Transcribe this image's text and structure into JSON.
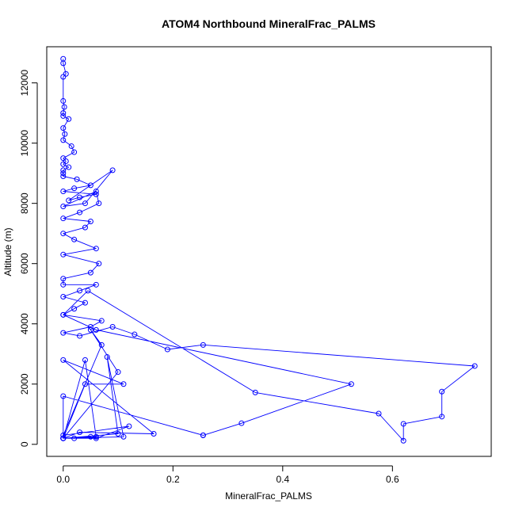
{
  "chart_data": {
    "type": "line",
    "title": "ATOM4 Northbound MineralFrac_PALMS",
    "xlabel": "MineralFrac_PALMS",
    "ylabel": "Altitude (m)",
    "xlim": [
      -0.03,
      0.78
    ],
    "ylim": [
      -400,
      13200
    ],
    "x_ticks": [
      0,
      0.2,
      0.4,
      0.6
    ],
    "x_tick_labels": [
      "0.0",
      "0.2",
      "0.4",
      "0.6"
    ],
    "y_ticks": [
      0,
      2000,
      4000,
      6000,
      8000,
      10000,
      12000
    ],
    "y_tick_labels": [
      "0",
      "2000",
      "4000",
      "6000",
      "8000",
      "10000",
      "12000"
    ],
    "grid": false,
    "marker": "open-circle",
    "color": "#0000ff",
    "series": [
      {
        "x": [
          0.0,
          0.0,
          0.005,
          0.0,
          0.0,
          0.002,
          0.0,
          0.0,
          0.01,
          0.0,
          0.003,
          0.0,
          0.015,
          0.02,
          0.0,
          0.005,
          0.0,
          0.01,
          0.0,
          0.0,
          0.0,
          0.025,
          0.05,
          0.02,
          0.0,
          0.06,
          0.03,
          0.01,
          0.09,
          0.04,
          0.0,
          0.06,
          0.065,
          0.03,
          0.0,
          0.05,
          0.04,
          0.0,
          0.02,
          0.06,
          0.0,
          0.065,
          0.05,
          0.0,
          0.0,
          0.06,
          0.03,
          0.0,
          0.04,
          0.02,
          0.0,
          0.07,
          0.05,
          0.0,
          0.03,
          0.09,
          0.13,
          0.19,
          0.255,
          0.75,
          0.69,
          0.69,
          0.62,
          0.62,
          0.575,
          0.35,
          0.045,
          0.0,
          0.06,
          0.525,
          0.325,
          0.255,
          0.255,
          0.0,
          0.0,
          0.04,
          0.11,
          0.0,
          0.165,
          0.03,
          0.0,
          0.1,
          0.05,
          0.07,
          0.0,
          0.12,
          0.06,
          0.0,
          0.11,
          0.08,
          0.1,
          0.0,
          0.06,
          0.04,
          0.0,
          0.02,
          0.05,
          0.0
        ],
        "y": [
          12800,
          12650,
          12300,
          12200,
          11400,
          11200,
          11000,
          10900,
          10800,
          10500,
          10300,
          10100,
          9900,
          9700,
          9500,
          9400,
          9300,
          9200,
          9100,
          9000,
          8900,
          8800,
          8600,
          8500,
          8400,
          8300,
          8200,
          8100,
          9100,
          8000,
          7900,
          8400,
          8000,
          7700,
          7500,
          7400,
          7200,
          7000,
          6800,
          6500,
          6300,
          6000,
          5700,
          5500,
          5300,
          5300,
          5100,
          4900,
          4700,
          4500,
          4300,
          4100,
          3900,
          3700,
          3600,
          3900,
          3650,
          3150,
          3300,
          2600,
          1750,
          920,
          680,
          120,
          1020,
          1720,
          5100,
          4300,
          3800,
          2000,
          700,
          300,
          300,
          1600,
          200,
          2000,
          2000,
          2800,
          350,
          400,
          200,
          2400,
          3800,
          3300,
          300,
          600,
          200,
          200,
          250,
          2900,
          350,
          200,
          250,
          2800,
          200,
          200,
          250,
          200
        ]
      }
    ]
  }
}
